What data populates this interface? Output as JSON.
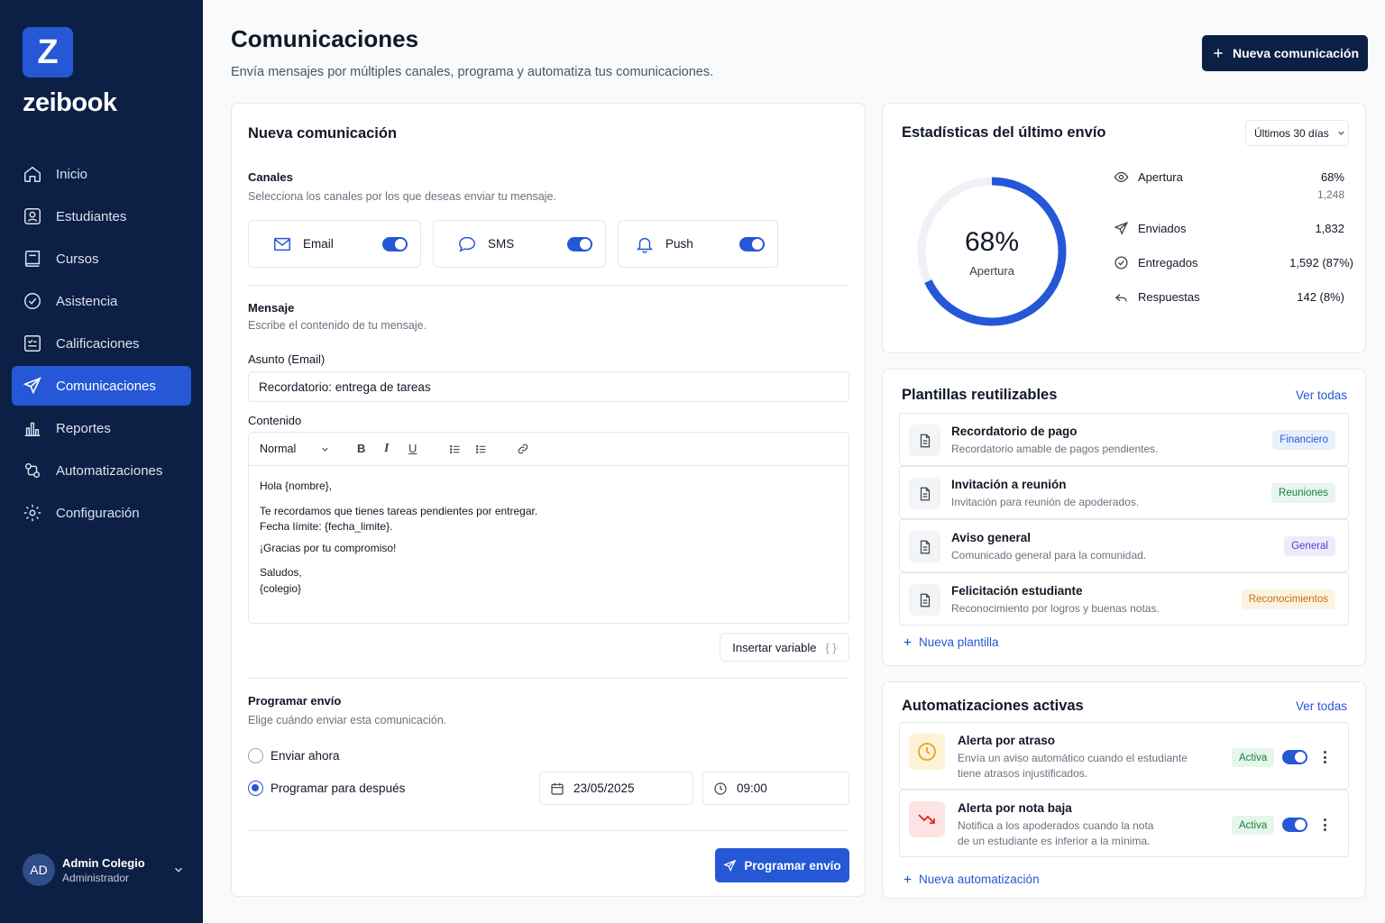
{
  "brand": {
    "logo_letter": "Z",
    "name": "zeibook"
  },
  "sidebar": {
    "items": [
      {
        "label": "Inicio",
        "icon": "home-icon"
      },
      {
        "label": "Estudiantes",
        "icon": "users-icon"
      },
      {
        "label": "Cursos",
        "icon": "book-icon"
      },
      {
        "label": "Asistencia",
        "icon": "check-circle-icon"
      },
      {
        "label": "Calificaciones",
        "icon": "grades-icon"
      },
      {
        "label": "Comunicaciones",
        "icon": "send-icon",
        "active": true
      },
      {
        "label": "Reportes",
        "icon": "bar-chart-icon"
      },
      {
        "label": "Automatizaciones",
        "icon": "automation-icon"
      },
      {
        "label": "Configuración",
        "icon": "gear-icon"
      }
    ],
    "user": {
      "initials": "AD",
      "name": "Admin Colegio",
      "role": "Administrador"
    }
  },
  "header": {
    "title": "Comunicaciones",
    "subtitle": "Envía mensajes por múltiples canales, programa y automatiza tus comunicaciones.",
    "new_button": "Nueva comunicación"
  },
  "compose": {
    "title": "Nueva comunicación",
    "channels_label": "Canales",
    "channels_sub": "Selecciona los canales por los que deseas enviar tu mensaje.",
    "channels": [
      {
        "label": "Email",
        "enabled": true
      },
      {
        "label": "SMS",
        "enabled": true
      },
      {
        "label": "Push",
        "enabled": true
      }
    ],
    "message_label": "Mensaje",
    "message_sub": "Escribe el contenido de tu mensaje.",
    "subject_label": "Asunto (Email)",
    "subject_value": "Recordatorio: entrega de tareas",
    "content_label": "Contenido",
    "format_select": "Normal",
    "toolbar": {
      "bold": "B",
      "italic": "I",
      "underline": "U"
    },
    "body_lines": [
      "Hola {nombre},",
      "Te recordamos que tienes tareas pendientes por entregar.",
      "Fecha límite: {fecha_limite}.",
      "¡Gracias por tu compromiso!",
      "Saludos,",
      "{colegio}"
    ],
    "insert_variable": "Insertar variable",
    "schedule_label": "Programar envío",
    "schedule_sub": "Elige cuándo enviar esta comunicación.",
    "option_now": "Enviar ahora",
    "option_later": "Programar para después",
    "selected_option": "later",
    "date": "23/05/2025",
    "time": "09:00",
    "submit": "Programar envío"
  },
  "stats": {
    "title": "Estadísticas del último envío",
    "range": "Últimos 30 días",
    "donut_value": "68%",
    "donut_label": "Apertura",
    "open_fraction": 0.68,
    "rows": [
      {
        "label": "Apertura",
        "value": "68%",
        "sub": "1,248",
        "icon": "eye-icon"
      },
      {
        "label": "Enviados",
        "value": "1,832",
        "icon": "send-icon"
      },
      {
        "label": "Entregados",
        "value": "1,592 (87%)",
        "icon": "check-circle-icon"
      },
      {
        "label": "Respuestas",
        "value": "142 (8%)",
        "icon": "reply-icon"
      }
    ],
    "accent": "#2557d6"
  },
  "templates": {
    "title": "Plantillas reutilizables",
    "view_all": "Ver todas",
    "items": [
      {
        "title": "Recordatorio de pago",
        "desc": "Recordatorio amable de pagos pendientes.",
        "tag": "Financiero",
        "tag_bg": "#e8f0fe",
        "tag_color": "#2557d6"
      },
      {
        "title": "Invitación a reunión",
        "desc": "Invitación para reunión de apoderados.",
        "tag": "Reuniones",
        "tag_bg": "#e7f6ec",
        "tag_color": "#15803d"
      },
      {
        "title": "Aviso general",
        "desc": "Comunicado general para la comunidad.",
        "tag": "General",
        "tag_bg": "#eeeafc",
        "tag_color": "#5b3cc4"
      },
      {
        "title": "Felicitación estudiante",
        "desc": "Reconocimiento por logros y buenas notas.",
        "tag": "Reconocimientos",
        "tag_bg": "#fdf3e2",
        "tag_color": "#c2700c"
      }
    ],
    "new_link": "Nueva plantilla"
  },
  "automations": {
    "title": "Automatizaciones activas",
    "view_all": "Ver todas",
    "items": [
      {
        "title": "Alerta por atraso",
        "desc": "Envía un aviso automático cuando el estudiante tiene atrasos injustificados.",
        "status": "Activa",
        "icon": "clock-icon"
      },
      {
        "title": "Alerta por nota baja",
        "desc": "Notifica a los apoderados cuando la nota de un estudiante es inferior a la mínima.",
        "status": "Activa",
        "icon": "trend-down-icon"
      }
    ],
    "new_link": "Nueva automatización"
  }
}
